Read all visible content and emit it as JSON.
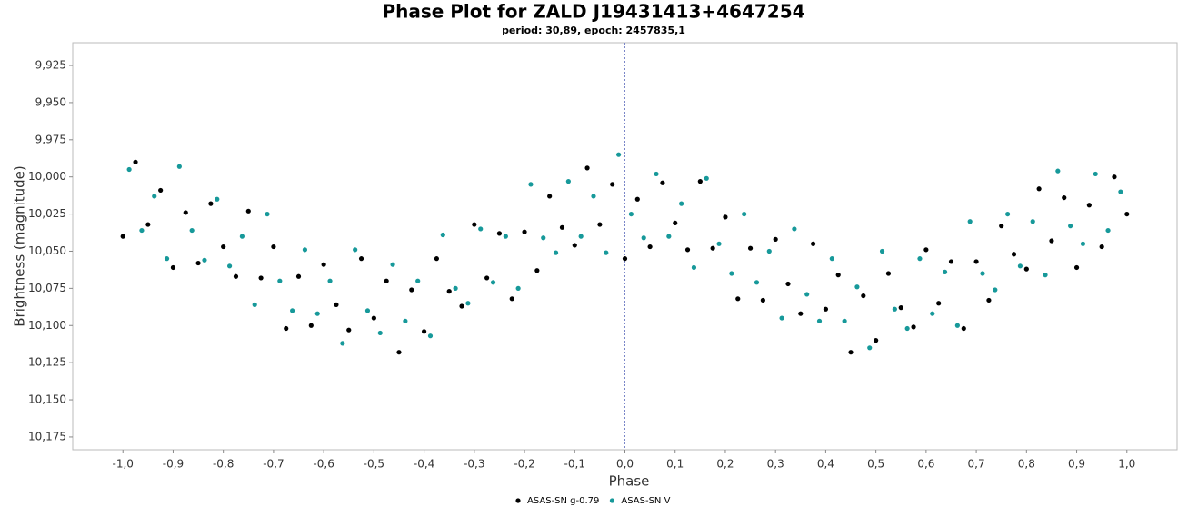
{
  "chart_data": {
    "type": "scatter",
    "title": "Phase Plot for ZALD J19431413+4647254",
    "subtitle": "period: 30,89, epoch: 2457835,1",
    "x_label": "Phase",
    "y_label": "Brightness (magnitude)",
    "xlim": [
      -1.1,
      1.1
    ],
    "ylim": [
      10.1836,
      9.9097
    ],
    "xticks": [
      {
        "value": -1.0,
        "label": "-1,0"
      },
      {
        "value": -0.9,
        "label": "-0,9"
      },
      {
        "value": -0.8,
        "label": "-0,8"
      },
      {
        "value": -0.7,
        "label": "-0,7"
      },
      {
        "value": -0.6,
        "label": "-0,6"
      },
      {
        "value": -0.5,
        "label": "-0,5"
      },
      {
        "value": -0.4,
        "label": "-0,4"
      },
      {
        "value": -0.3,
        "label": "-0,3"
      },
      {
        "value": -0.2,
        "label": "-0,2"
      },
      {
        "value": -0.1,
        "label": "-0,1"
      },
      {
        "value": 0.0,
        "label": "0,0"
      },
      {
        "value": 0.1,
        "label": "0,1"
      },
      {
        "value": 0.2,
        "label": "0,2"
      },
      {
        "value": 0.3,
        "label": "0,3"
      },
      {
        "value": 0.4,
        "label": "0,4"
      },
      {
        "value": 0.5,
        "label": "0,5"
      },
      {
        "value": 0.6,
        "label": "0,6"
      },
      {
        "value": 0.7,
        "label": "0,7"
      },
      {
        "value": 0.8,
        "label": "0,8"
      },
      {
        "value": 0.9,
        "label": "0,9"
      },
      {
        "value": 1.0,
        "label": "1,0"
      }
    ],
    "yticks": [
      {
        "value": 9.925,
        "label": "9,925"
      },
      {
        "value": 9.95,
        "label": "9,950"
      },
      {
        "value": 9.975,
        "label": "9,975"
      },
      {
        "value": 10.0,
        "label": "10,000"
      },
      {
        "value": 10.025,
        "label": "10,025"
      },
      {
        "value": 10.05,
        "label": "10,050"
      },
      {
        "value": 10.075,
        "label": "10,075"
      },
      {
        "value": 10.1,
        "label": "10,100"
      },
      {
        "value": 10.125,
        "label": "10,125"
      },
      {
        "value": 10.15,
        "label": "10,150"
      },
      {
        "value": 10.175,
        "label": "10,175"
      }
    ],
    "grid": false,
    "zero_line": true,
    "legend": "bottom",
    "series": [
      {
        "name": "ASAS-SN g-0.79",
        "color": "#000000",
        "x": [
          -1,
          -0.975,
          -0.95,
          -0.925,
          -0.9,
          -0.875,
          -0.85,
          -0.825,
          -0.8,
          -0.775,
          -0.75,
          -0.725,
          -0.7,
          -0.675,
          -0.65,
          -0.625,
          -0.6,
          -0.575,
          -0.55,
          -0.525,
          -0.5,
          -0.475,
          -0.45,
          -0.425,
          -0.4,
          -0.375,
          -0.35,
          -0.325,
          -0.3,
          -0.275,
          -0.25,
          -0.225,
          -0.2,
          -0.175,
          -0.15,
          -0.125,
          -0.1,
          -0.075,
          -0.05,
          -0.025,
          0,
          0.025,
          0.05,
          0.075,
          0.1,
          0.125,
          0.15,
          0.175,
          0.2,
          0.225,
          0.25,
          0.275,
          0.3,
          0.325,
          0.35,
          0.375,
          0.4,
          0.425,
          0.45,
          0.475,
          0.5,
          0.525,
          0.55,
          0.575,
          0.6,
          0.625,
          0.65,
          0.675,
          0.7,
          0.725,
          0.75,
          0.775,
          0.8,
          0.825,
          0.85,
          0.875,
          0.9,
          0.925,
          0.95,
          0.975,
          1
        ],
        "values": [
          10.04,
          9.99,
          10.032,
          10.009,
          10.061,
          10.024,
          10.058,
          10.018,
          10.047,
          10.067,
          10.023,
          10.068,
          10.047,
          10.102,
          10.067,
          10.1,
          10.059,
          10.086,
          10.103,
          10.055,
          10.095,
          10.07,
          10.118,
          10.076,
          10.104,
          10.055,
          10.077,
          10.087,
          10.032,
          10.068,
          10.038,
          10.082,
          10.037,
          10.063,
          10.013,
          10.034,
          10.046,
          9.994,
          10.032,
          10.005,
          10.055,
          10.015,
          10.047,
          10.004,
          10.031,
          10.049,
          10.003,
          10.048,
          10.027,
          10.082,
          10.048,
          10.083,
          10.042,
          10.072,
          10.092,
          10.045,
          10.089,
          10.066,
          10.118,
          10.08,
          10.11,
          10.065,
          10.088,
          10.101,
          10.049,
          10.085,
          10.057,
          10.102,
          10.057,
          10.083,
          10.033,
          10.052,
          10.062,
          10.008,
          10.043,
          10.014,
          10.061,
          10.019,
          10.047,
          10.0,
          10.025
        ]
      },
      {
        "name": "ASAS-SN V",
        "color": "#17999a",
        "x": [
          -0.9875,
          -0.9625,
          -0.9375,
          -0.9125,
          -0.8875,
          -0.8625,
          -0.8375,
          -0.8125,
          -0.7875,
          -0.7625,
          -0.7375,
          -0.7125,
          -0.6875,
          -0.6625,
          -0.6375,
          -0.6125,
          -0.5875,
          -0.5625,
          -0.5375,
          -0.5125,
          -0.4875,
          -0.4625,
          -0.4375,
          -0.4125,
          -0.3875,
          -0.3625,
          -0.3375,
          -0.3125,
          -0.2875,
          -0.2625,
          -0.2375,
          -0.2125,
          -0.1875,
          -0.1625,
          -0.1375,
          -0.1125,
          -0.0875,
          -0.0625,
          -0.0375,
          -0.0125,
          0.0125,
          0.0375,
          0.0625,
          0.0875,
          0.1125,
          0.1375,
          0.1625,
          0.1875,
          0.2125,
          0.2375,
          0.2625,
          0.2875,
          0.3125,
          0.3375,
          0.3625,
          0.3875,
          0.4125,
          0.4375,
          0.4625,
          0.4875,
          0.5125,
          0.5375,
          0.5625,
          0.5875,
          0.6125,
          0.6375,
          0.6625,
          0.6875,
          0.7125,
          0.7375,
          0.7625,
          0.7875,
          0.8125,
          0.8375,
          0.8625,
          0.8875,
          0.9125,
          0.9375,
          0.9625,
          0.9875
        ],
        "values": [
          9.995,
          10.036,
          10.013,
          10.055,
          9.993,
          10.036,
          10.056,
          10.015,
          10.06,
          10.04,
          10.086,
          10.025,
          10.07,
          10.09,
          10.049,
          10.092,
          10.07,
          10.112,
          10.049,
          10.09,
          10.105,
          10.059,
          10.097,
          10.07,
          10.107,
          10.039,
          10.075,
          10.085,
          10.035,
          10.071,
          10.04,
          10.075,
          10.005,
          10.041,
          10.051,
          10.003,
          10.04,
          10.013,
          10.051,
          9.985,
          10.025,
          10.041,
          9.998,
          10.04,
          10.018,
          10.061,
          10.001,
          10.045,
          10.065,
          10.025,
          10.071,
          10.05,
          10.095,
          10.035,
          10.079,
          10.097,
          10.055,
          10.097,
          10.074,
          10.115,
          10.05,
          10.089,
          10.102,
          10.055,
          10.092,
          10.064,
          10.1,
          10.03,
          10.065,
          10.076,
          10.025,
          10.06,
          10.03,
          10.066,
          9.996,
          10.033,
          10.045,
          9.998,
          10.036,
          10.01
        ]
      }
    ]
  }
}
